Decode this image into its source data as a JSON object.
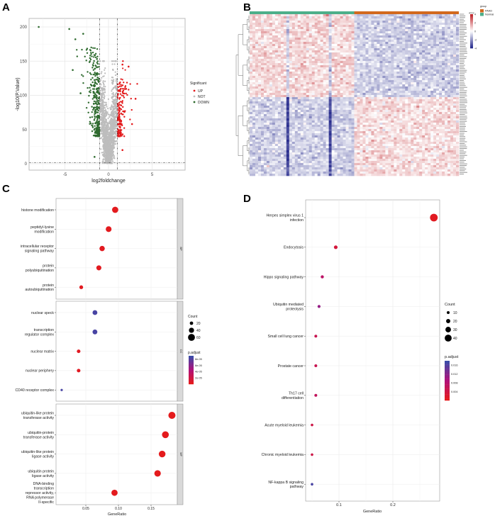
{
  "panels": {
    "a": "A",
    "b": "B",
    "c": "C",
    "d": "D"
  },
  "chart_data": [
    {
      "id": "A",
      "type": "scatter",
      "title": "",
      "xlabel": "log2foldchange",
      "ylabel": "-log10(P.Value)",
      "xlim": [
        -9,
        8.5
      ],
      "ylim": [
        -7,
        207
      ],
      "xticks": [
        -5,
        0,
        5
      ],
      "yticks": [
        0,
        50,
        100,
        150,
        200
      ],
      "thresholds": {
        "log2fc": [
          -1,
          1
        ],
        "neg_log10_p": 1.3
      },
      "legend": {
        "title": "Significant",
        "position": "right",
        "entries": [
          {
            "label": "UP",
            "color": "#e31a1c"
          },
          {
            "label": "NOT",
            "color": "#bdbdbd"
          },
          {
            "label": "DOWN",
            "color": "#2f6b2f"
          }
        ]
      },
      "highlight_points": [
        {
          "x": -8.0,
          "y": 200,
          "group": "DOWN"
        },
        {
          "x": -4.5,
          "y": 197,
          "group": "DOWN"
        },
        {
          "x": -3.8,
          "y": 182,
          "group": "DOWN"
        },
        {
          "x": -2.9,
          "y": 190,
          "group": "DOWN"
        },
        {
          "x": -4.1,
          "y": 137,
          "group": "DOWN"
        },
        {
          "x": -3.2,
          "y": 103,
          "group": "DOWN"
        },
        {
          "x": -1.6,
          "y": 10,
          "group": "DOWN"
        },
        {
          "x": 1.6,
          "y": 145,
          "group": "UP"
        },
        {
          "x": 2.3,
          "y": 142,
          "group": "UP"
        },
        {
          "x": 3.1,
          "y": 95,
          "group": "UP"
        },
        {
          "x": 2.7,
          "y": 58,
          "group": "UP"
        },
        {
          "x": 1.6,
          "y": 20,
          "group": "UP"
        }
      ]
    },
    {
      "id": "B",
      "type": "heatmap",
      "annotation_title": "group",
      "groups": [
        {
          "label": "Normal",
          "color": "#4daf8a"
        },
        {
          "label": "PAAD",
          "color": "#d2691e"
        }
      ],
      "color_scale": {
        "ticks": [
          4,
          2,
          0,
          -2,
          -4
        ],
        "low": "#2b2f8f",
        "mid": "#ffffff",
        "high": "#c0272d"
      },
      "blocks": [
        {
          "genes": "upper cluster",
          "Normal": 0.7,
          "PAAD": -0.9
        },
        {
          "genes": "lower cluster",
          "Normal": -0.9,
          "PAAD": 0.6
        }
      ]
    },
    {
      "id": "C",
      "type": "scatter",
      "xlabel": "GeneRatio",
      "xlim": [
        0.004,
        0.19
      ],
      "xticks": [
        0.05,
        0.1,
        0.15
      ],
      "tick_labels": [
        "0.05",
        "0.10",
        "0.15"
      ],
      "size_legend": {
        "title": "Count",
        "values": [
          20,
          40,
          60
        ]
      },
      "color_legend": {
        "title": "p.adjust",
        "ticks": [
          8e-05,
          6e-05,
          4e-05,
          2e-05
        ],
        "tick_labels": [
          "8e-05",
          "6e-05",
          "4e-05",
          "2e-05"
        ],
        "range": [
          0,
          9e-05
        ]
      },
      "facets": [
        {
          "label": "BP",
          "terms": [
            {
              "term": "histone modification",
              "gene_ratio": 0.095,
              "count": 52,
              "p_adjust": 1e-06
            },
            {
              "term": "peptidyl-lysine modification",
              "gene_ratio": 0.085,
              "count": 47,
              "p_adjust": 1e-06
            },
            {
              "term": "intracellular receptor signaling pathway",
              "gene_ratio": 0.075,
              "count": 42,
              "p_adjust": 2e-06
            },
            {
              "term": "protein polyubiquitination",
              "gene_ratio": 0.07,
              "count": 39,
              "p_adjust": 2e-06
            },
            {
              "term": "protein autoubiquitination",
              "gene_ratio": 0.043,
              "count": 24,
              "p_adjust": 2e-06
            }
          ]
        },
        {
          "label": "CC",
          "terms": [
            {
              "term": "nuclear speck",
              "gene_ratio": 0.064,
              "count": 36,
              "p_adjust": 8.5e-05
            },
            {
              "term": "transcription regulator complex",
              "gene_ratio": 0.064,
              "count": 36,
              "p_adjust": 8.5e-05
            },
            {
              "term": "nuclear matrix",
              "gene_ratio": 0.039,
              "count": 22,
              "p_adjust": 3e-06
            },
            {
              "term": "nuclear periphery",
              "gene_ratio": 0.039,
              "count": 22,
              "p_adjust": 3e-06
            },
            {
              "term": "CD40 receptor complex",
              "gene_ratio": 0.013,
              "count": 7,
              "p_adjust": 8.5e-05
            }
          ]
        },
        {
          "label": "MF",
          "terms": [
            {
              "term": "ubiquitin-like protein transferase activity",
              "gene_ratio": 0.182,
              "count": 62,
              "p_adjust": 1e-07
            },
            {
              "term": "ubiquitin-protein transferase activity",
              "gene_ratio": 0.172,
              "count": 59,
              "p_adjust": 1e-07
            },
            {
              "term": "ubiquitin-like protein ligase activity",
              "gene_ratio": 0.167,
              "count": 57,
              "p_adjust": 1e-07
            },
            {
              "term": "ubiquitin protein ligase activity",
              "gene_ratio": 0.16,
              "count": 55,
              "p_adjust": 1e-07
            },
            {
              "term": "DNA-binding transcription repressor activity, RNA polymerase II-specific",
              "gene_ratio": 0.094,
              "count": 52,
              "p_adjust": 1e-06
            }
          ]
        }
      ]
    },
    {
      "id": "D",
      "type": "scatter",
      "xlabel": "GeneRatio",
      "xlim": [
        0.038,
        0.287
      ],
      "xticks": [
        0.1,
        0.2
      ],
      "tick_labels": [
        "0.1",
        "0.2"
      ],
      "size_legend": {
        "title": "Count",
        "values": [
          10,
          20,
          30,
          40
        ]
      },
      "color_legend": {
        "title": "p.adjust",
        "ticks": [
          0.016,
          0.012,
          0.008,
          0.004
        ],
        "tick_labels": [
          "0.016",
          "0.012",
          "0.008",
          "0.004"
        ],
        "range": [
          0,
          0.018
        ]
      },
      "terms": [
        {
          "term": "Herpes simplex virus 1 infection",
          "gene_ratio": 0.276,
          "count": 45,
          "p_adjust": 0.0005
        },
        {
          "term": "Endocytosis",
          "gene_ratio": 0.094,
          "count": 16,
          "p_adjust": 0.003
        },
        {
          "term": "Hippo signaling pathway",
          "gene_ratio": 0.069,
          "count": 12,
          "p_adjust": 0.007
        },
        {
          "term": "Ubiquitin mediated proteolysis",
          "gene_ratio": 0.063,
          "count": 11,
          "p_adjust": 0.011
        },
        {
          "term": "Small cell lung cancer",
          "gene_ratio": 0.057,
          "count": 10,
          "p_adjust": 0.005
        },
        {
          "term": "Prostate cancer",
          "gene_ratio": 0.057,
          "count": 10,
          "p_adjust": 0.005
        },
        {
          "term": "Th17 cell differentiation",
          "gene_ratio": 0.057,
          "count": 10,
          "p_adjust": 0.006
        },
        {
          "term": "Acute myeloid leukemia",
          "gene_ratio": 0.05,
          "count": 8,
          "p_adjust": 0.004
        },
        {
          "term": "Chronic myeloid leukemia",
          "gene_ratio": 0.05,
          "count": 8,
          "p_adjust": 0.004
        },
        {
          "term": "NF-kappa B signaling pathway",
          "gene_ratio": 0.05,
          "count": 8,
          "p_adjust": 0.017
        }
      ]
    }
  ]
}
